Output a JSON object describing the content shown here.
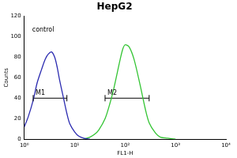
{
  "chart_data": {
    "type": "line",
    "title": "HepG2",
    "x_label": "FL1-H",
    "y_label": "Counts",
    "log": "x",
    "grid": false,
    "xlim": [
      1,
      10000
    ],
    "xticks": [
      {
        "value": 1,
        "label": "10⁰"
      },
      {
        "value": 10,
        "label": "10¹"
      },
      {
        "value": 100,
        "label": "10²"
      },
      {
        "value": 1000,
        "label": "10³"
      },
      {
        "value": 10000,
        "label": "10⁴"
      }
    ],
    "ylim": [
      0,
      120
    ],
    "yticks": [
      0,
      20,
      40,
      60,
      80,
      100,
      120
    ],
    "series": [
      {
        "name": "control",
        "color": "#2b2bb0",
        "x": [
          1,
          1.2,
          1.5,
          1.8,
          2.2,
          2.6,
          3,
          3.5,
          4,
          4.5,
          5,
          6,
          7,
          8,
          10,
          12,
          15,
          20
        ],
        "values": [
          12,
          22,
          38,
          55,
          68,
          78,
          83,
          85,
          80,
          70,
          58,
          40,
          25,
          15,
          7,
          3,
          1,
          0
        ]
      },
      {
        "color": "#33c433",
        "x": [
          15,
          20,
          25,
          30,
          40,
          50,
          60,
          70,
          80,
          90,
          100,
          120,
          150,
          200,
          250,
          300,
          400,
          500,
          700,
          1000
        ],
        "values": [
          0,
          2,
          5,
          9,
          20,
          35,
          50,
          65,
          78,
          88,
          92,
          90,
          78,
          52,
          30,
          16,
          6,
          2,
          1,
          0
        ]
      }
    ],
    "markers": [
      {
        "label": "M1",
        "x": [
          1.5,
          7
        ],
        "y": 40
      },
      {
        "label": "M2",
        "x": [
          40,
          300
        ],
        "y": 40
      }
    ]
  }
}
